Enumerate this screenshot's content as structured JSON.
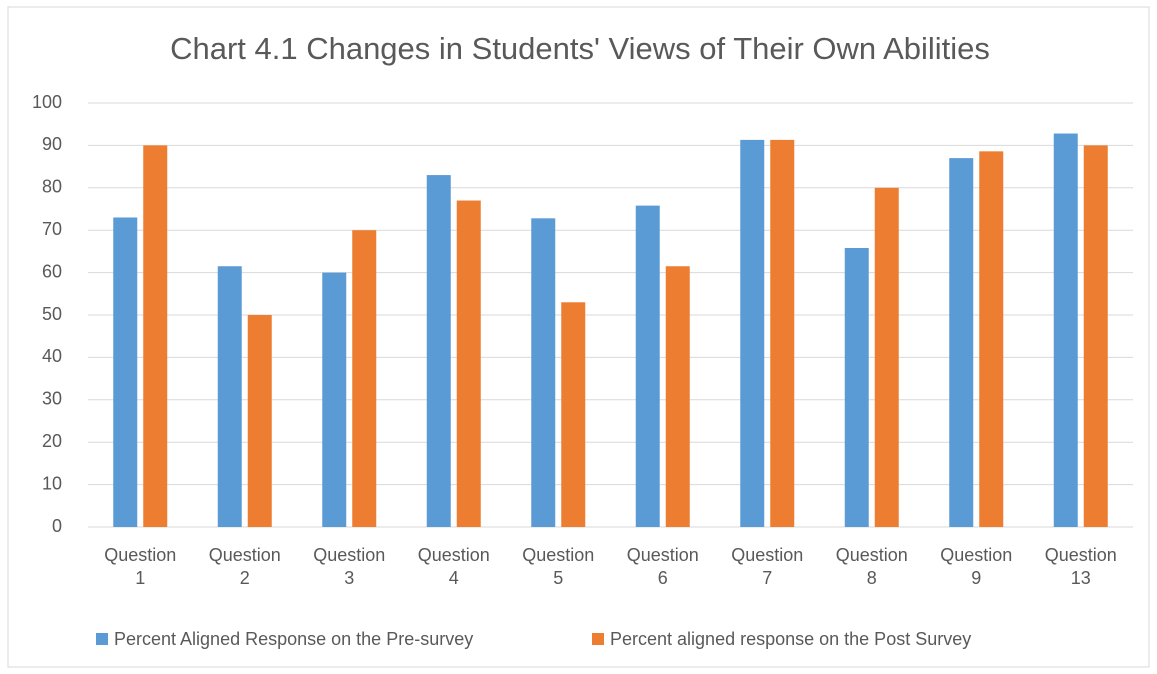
{
  "chart_data": {
    "type": "bar",
    "title": "Chart 4.1 Changes in Students' Views of Their Own Abilities",
    "categories": [
      "Question 1",
      "Question 2",
      "Question 3",
      "Question 4",
      "Question 5",
      "Question 6",
      "Question 7",
      "Question 8",
      "Question 9",
      "Question 13"
    ],
    "series": [
      {
        "name": "Percent Aligned Response on the Pre-survey",
        "color": "#5b9bd5",
        "values": [
          73,
          61.5,
          60,
          83,
          72.8,
          75.8,
          91.3,
          65.8,
          87,
          92.8
        ]
      },
      {
        "name": "Percent aligned response on the Post Survey",
        "color": "#ed7d31",
        "values": [
          90,
          50,
          70,
          77,
          53,
          61.5,
          91.3,
          80,
          88.6,
          90
        ]
      }
    ],
    "ylim": [
      0,
      100
    ],
    "yticks": [
      0,
      10,
      20,
      30,
      40,
      50,
      60,
      70,
      80,
      90,
      100
    ],
    "grid": true,
    "legend": "bottom"
  }
}
